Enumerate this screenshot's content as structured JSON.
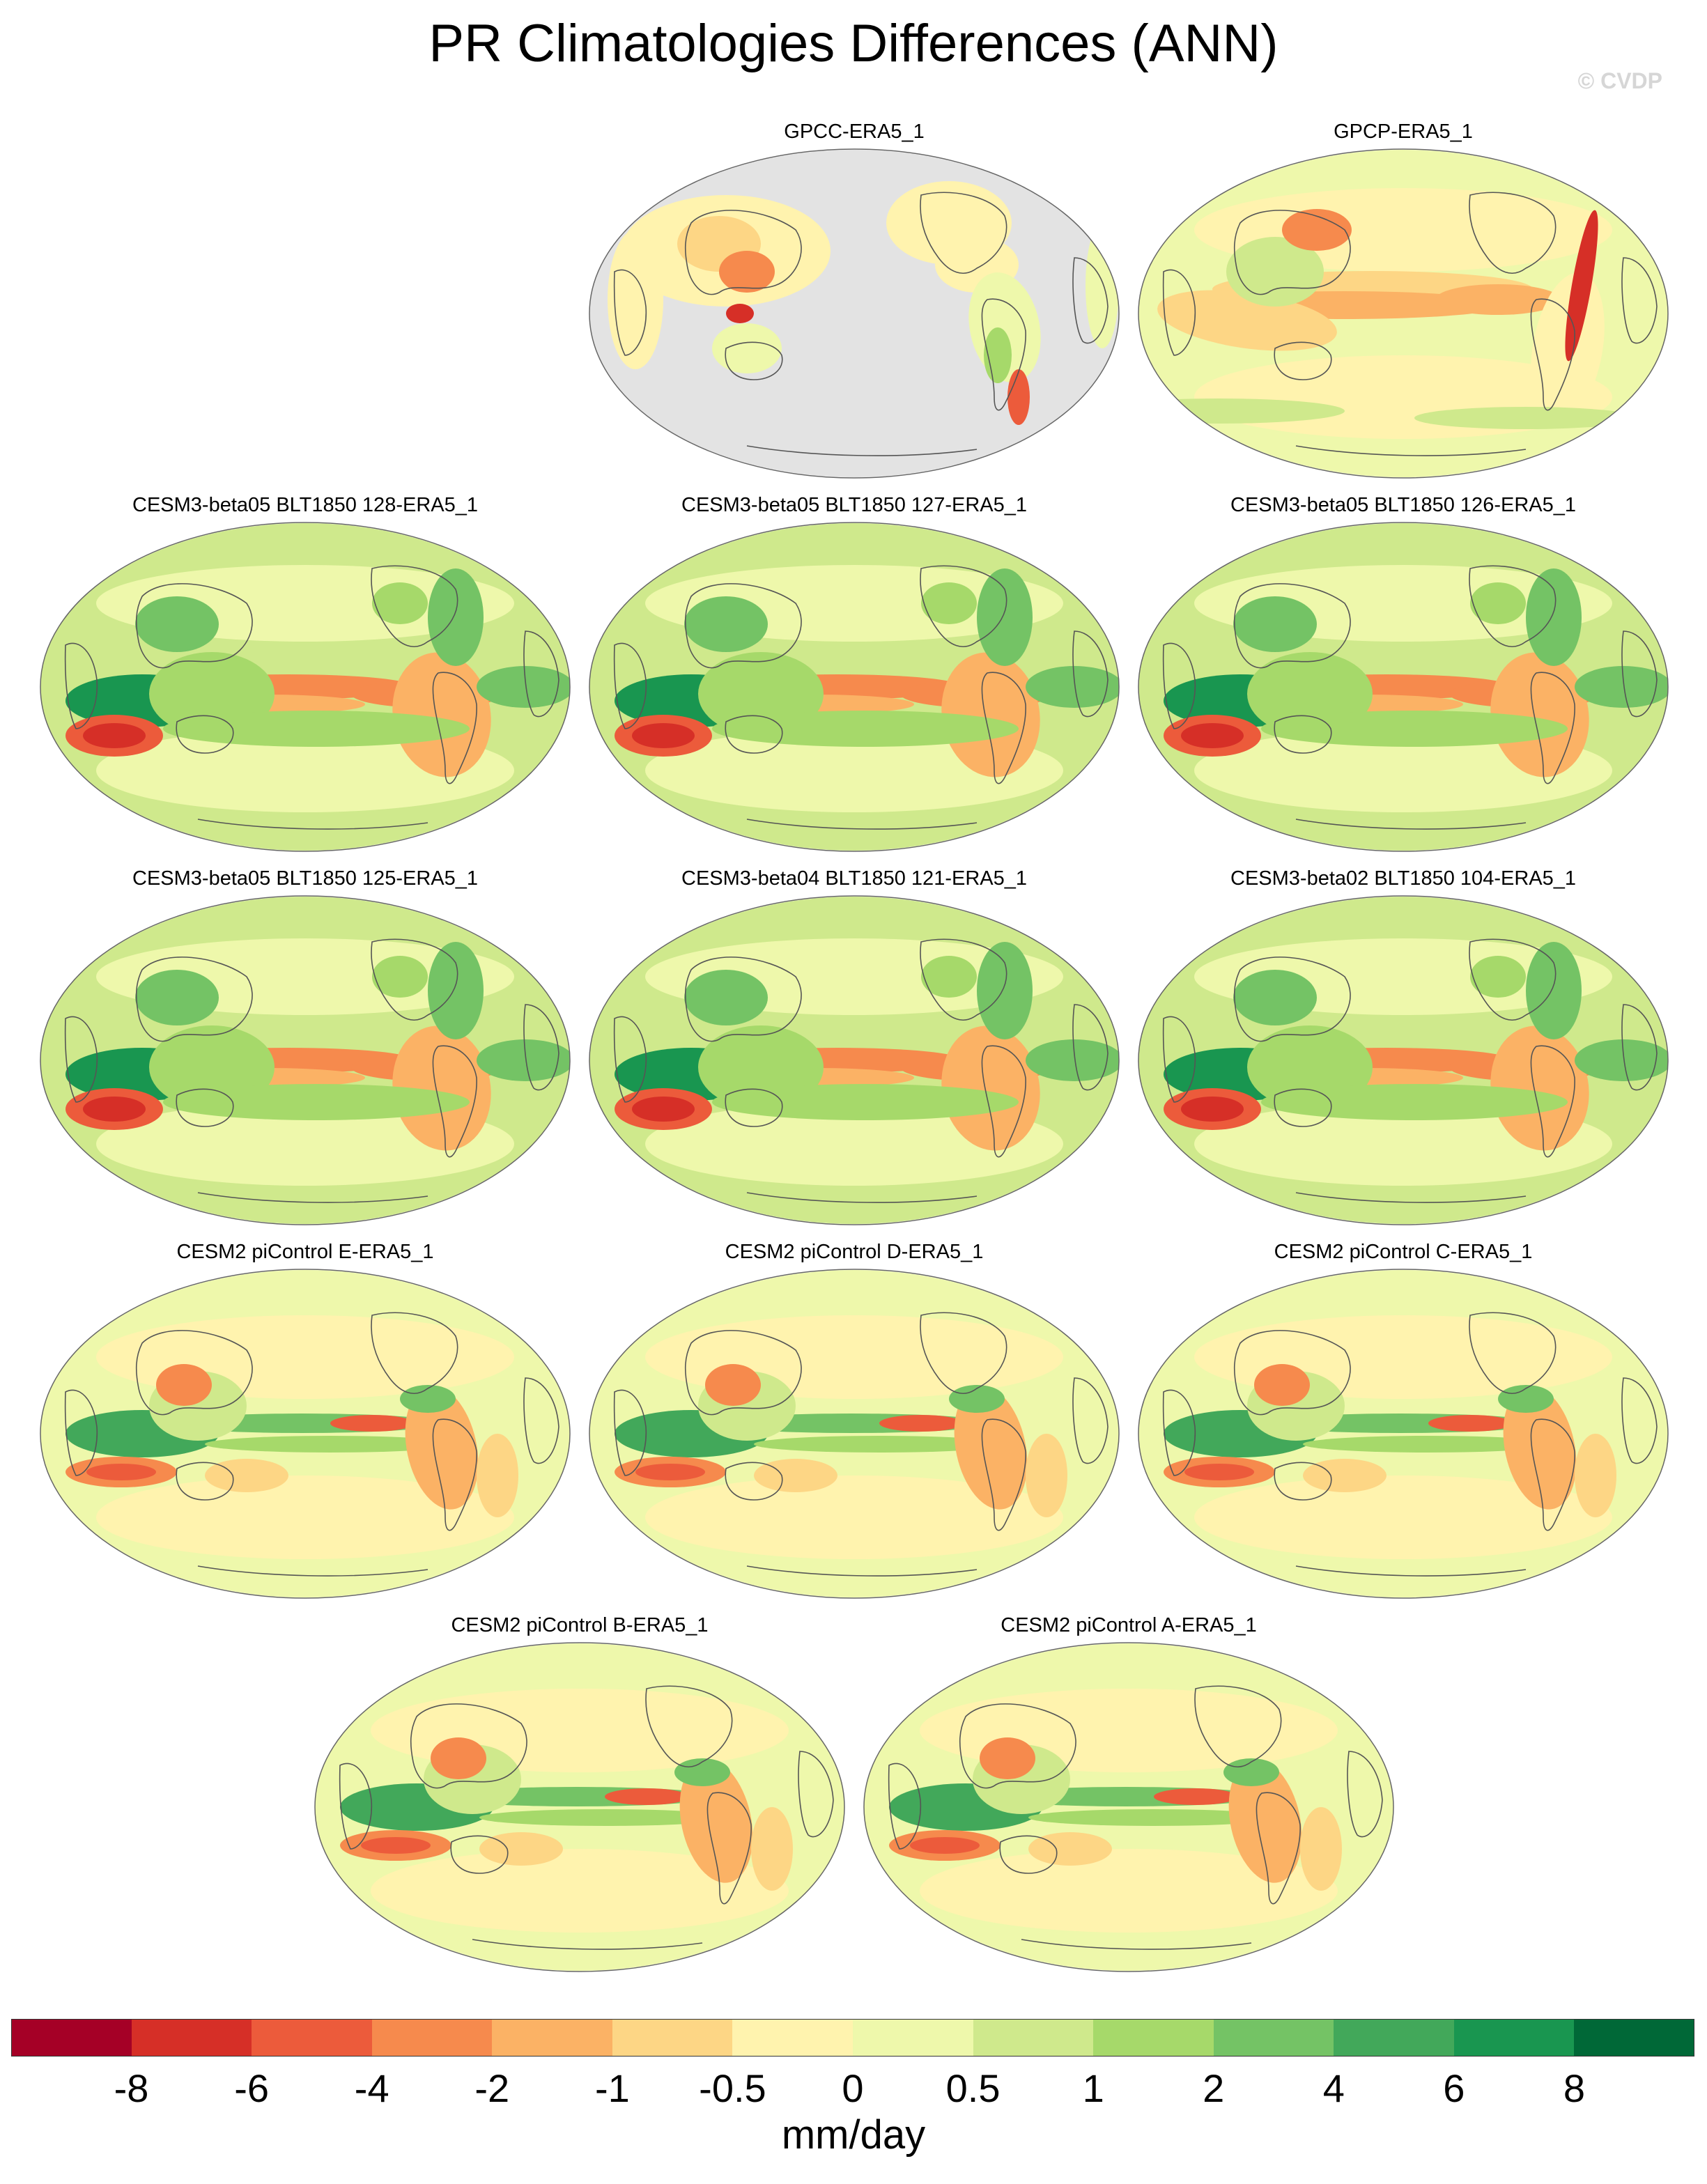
{
  "title": "PR Climatologies Differences (ANN)",
  "watermark": "© CVDP",
  "units": "mm/day",
  "colors": {
    "land_missing": "#e3e3e3",
    "base_field": "#fbeeac",
    "coastline": "#555555"
  },
  "panels": [
    {
      "label": "GPCC-ERA5_1",
      "style": "land_only"
    },
    {
      "label": "GPCP-ERA5_1",
      "style": "obs"
    },
    {
      "label": "CESM3-beta05 BLT1850 128-ERA5_1",
      "style": "cesm3"
    },
    {
      "label": "CESM3-beta05 BLT1850 127-ERA5_1",
      "style": "cesm3"
    },
    {
      "label": "CESM3-beta05 BLT1850 126-ERA5_1",
      "style": "cesm3"
    },
    {
      "label": "CESM3-beta05 BLT1850 125-ERA5_1",
      "style": "cesm3"
    },
    {
      "label": "CESM3-beta04 BLT1850 121-ERA5_1",
      "style": "cesm3"
    },
    {
      "label": "CESM3-beta02 BLT1850 104-ERA5_1",
      "style": "cesm3"
    },
    {
      "label": "CESM2 piControl E-ERA5_1",
      "style": "cesm2"
    },
    {
      "label": "CESM2 piControl D-ERA5_1",
      "style": "cesm2"
    },
    {
      "label": "CESM2 piControl C-ERA5_1",
      "style": "cesm2"
    },
    {
      "label": "CESM2 piControl B-ERA5_1",
      "style": "cesm2"
    },
    {
      "label": "CESM2 piControl A-ERA5_1",
      "style": "cesm2"
    }
  ],
  "colorbar": {
    "colors": [
      "#a50026",
      "#d62f27",
      "#ec5b3b",
      "#f68a4d",
      "#fbb265",
      "#fdd685",
      "#fff3ae",
      "#eef8ab",
      "#cfe98c",
      "#a6d96a",
      "#74c365",
      "#42a85a",
      "#199650",
      "#006837"
    ],
    "ticks": [
      "-8",
      "-6",
      "-4",
      "-2",
      "-1",
      "-0.5",
      "0",
      "0.5",
      "1",
      "2",
      "4",
      "6",
      "8"
    ]
  }
}
